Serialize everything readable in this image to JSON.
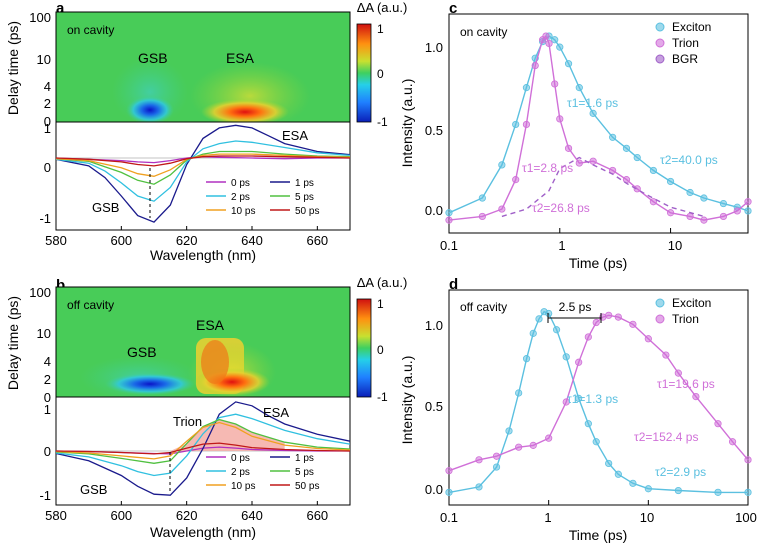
{
  "panels": {
    "a": {
      "letter": "a",
      "map_label": "on cavity",
      "map_ylabel": "Delay time (ps)",
      "map_yticks": [
        "100",
        "10",
        "4",
        "2",
        "0"
      ],
      "map_annotations": [
        "GSB",
        "ESA"
      ],
      "colorbar_title": "ΔA (a.u.)",
      "colorbar_ticks": [
        "1",
        "0",
        "-1"
      ],
      "spec_yticks": [
        "1",
        "0",
        "-1"
      ],
      "spec_annotations": [
        "GSB",
        "ESA"
      ],
      "xlabel": "Wavelength (nm)",
      "xticks": [
        "580",
        "600",
        "620",
        "640",
        "660"
      ],
      "legend": [
        "0 ps",
        "1 ps",
        "2 ps",
        "5 ps",
        "10 ps",
        "50 ps"
      ]
    },
    "b": {
      "letter": "b",
      "map_label": "off cavity",
      "map_ylabel": "Delay time (ps)",
      "map_yticks": [
        "100",
        "10",
        "4",
        "2",
        "0"
      ],
      "map_annotations": [
        "GSB",
        "ESA"
      ],
      "colorbar_title": "ΔA (a.u.)",
      "colorbar_ticks": [
        "1",
        "0",
        "-1"
      ],
      "spec_yticks": [
        "1",
        "0",
        "-1"
      ],
      "spec_annotations": [
        "Trion",
        "ESA",
        "GSB"
      ],
      "xlabel": "Wavelength (nm)",
      "xticks": [
        "580",
        "600",
        "620",
        "640",
        "660"
      ],
      "legend": [
        "0 ps",
        "1 ps",
        "2 ps",
        "5 ps",
        "10 ps",
        "50 ps"
      ]
    },
    "c": {
      "letter": "c",
      "label": "on cavity",
      "ylabel": "Intensity (a.u.)",
      "xlabel": "Time (ps)",
      "yticks": [
        "1.0",
        "0.5",
        "0.0"
      ],
      "xticks": [
        "0.1",
        "1",
        "10"
      ],
      "legend": [
        "Exciton",
        "Trion",
        "BGR"
      ],
      "annotations": [
        "τ1=1.6 ps",
        "τ2=40.0 ps",
        "τ1=2.8 ps",
        "τ2=26.8 ps"
      ]
    },
    "d": {
      "letter": "d",
      "label": "off cavity",
      "ylabel": "Intensity (a.u.)",
      "xlabel": "Time (ps)",
      "yticks": [
        "1.0",
        "0.5",
        "0.0"
      ],
      "xticks": [
        "0.1",
        "1",
        "10",
        "100"
      ],
      "legend": [
        "Exciton",
        "Trion"
      ],
      "annotations": [
        "2.5 ps",
        "τ1=1.3 ps",
        "τ1=19.6 ps",
        "τ2=152.4 ps",
        "τ2=2.9 ps"
      ]
    }
  },
  "colors": {
    "exciton": "#5bc0e0",
    "trion": "#d070d8",
    "bgr": "#a060c8",
    "ps0": "#b030c0",
    "ps1": "#1a1a8c",
    "ps2": "#30c0e0",
    "ps5": "#50c040",
    "ps10": "#f0a020",
    "ps50": "#c01818",
    "trion_fill": "#f4a8a0"
  },
  "chart_data": [
    {
      "id": "a-spectra",
      "type": "line",
      "title": "",
      "xlabel": "Wavelength (nm)",
      "xlim": [
        580,
        670
      ],
      "ylim": [
        -1.1,
        0.55
      ],
      "series": [
        {
          "name": "0 ps",
          "x": [
            580,
            590,
            600,
            605,
            610,
            615,
            620,
            625,
            630,
            640,
            650,
            660,
            670
          ],
          "values": [
            0,
            -0.02,
            -0.04,
            -0.06,
            -0.07,
            -0.04,
            0,
            0.02,
            0.01,
            0,
            -0.01,
            0,
            0
          ]
        },
        {
          "name": "1 ps",
          "x": [
            580,
            590,
            595,
            600,
            605,
            610,
            615,
            620,
            625,
            630,
            635,
            640,
            645,
            650,
            660,
            670
          ],
          "values": [
            -0.02,
            -0.12,
            -0.3,
            -0.58,
            -0.88,
            -0.98,
            -0.72,
            -0.1,
            0.3,
            0.46,
            0.5,
            0.46,
            0.34,
            0.22,
            0.1,
            0.05
          ]
        },
        {
          "name": "2 ps",
          "x": [
            580,
            590,
            595,
            600,
            605,
            610,
            615,
            620,
            625,
            630,
            635,
            640,
            650,
            660,
            670
          ],
          "values": [
            -0.02,
            -0.08,
            -0.2,
            -0.38,
            -0.58,
            -0.66,
            -0.45,
            -0.06,
            0.14,
            0.22,
            0.26,
            0.24,
            0.16,
            0.08,
            0.04
          ]
        },
        {
          "name": "5 ps",
          "x": [
            580,
            590,
            600,
            605,
            610,
            615,
            620,
            625,
            630,
            640,
            650,
            660,
            670
          ],
          "values": [
            -0.01,
            -0.05,
            -0.22,
            -0.34,
            -0.4,
            -0.26,
            -0.03,
            0.06,
            0.1,
            0.1,
            0.06,
            0.03,
            0.02
          ]
        },
        {
          "name": "10 ps",
          "x": [
            580,
            590,
            600,
            605,
            610,
            615,
            620,
            625,
            630,
            640,
            650,
            660,
            670
          ],
          "values": [
            -0.01,
            -0.04,
            -0.15,
            -0.24,
            -0.28,
            -0.18,
            -0.02,
            0.04,
            0.06,
            0.06,
            0.04,
            0.02,
            0.01
          ]
        },
        {
          "name": "50 ps",
          "x": [
            580,
            590,
            600,
            605,
            610,
            615,
            620,
            625,
            630,
            640,
            650,
            660,
            670
          ],
          "values": [
            0,
            -0.02,
            -0.06,
            -0.1,
            -0.12,
            -0.08,
            -0.01,
            0.02,
            0.03,
            0.03,
            0.02,
            0.01,
            0
          ]
        }
      ]
    },
    {
      "id": "b-spectra",
      "type": "line",
      "title": "",
      "xlabel": "Wavelength (nm)",
      "xlim": [
        580,
        670
      ],
      "ylim": [
        -1.1,
        1.1
      ],
      "series": [
        {
          "name": "0 ps",
          "x": [
            580,
            590,
            600,
            610,
            615,
            620,
            625,
            630,
            635,
            640,
            650,
            660,
            670
          ],
          "values": [
            0,
            -0.01,
            -0.03,
            -0.05,
            -0.06,
            0,
            0.06,
            0.08,
            0.06,
            0.03,
            0.01,
            0,
            0
          ]
        },
        {
          "name": "1 ps",
          "x": [
            580,
            590,
            600,
            605,
            610,
            615,
            620,
            625,
            630,
            635,
            640,
            645,
            650,
            660,
            670
          ],
          "values": [
            -0.05,
            -0.2,
            -0.5,
            -0.72,
            -0.88,
            -0.9,
            -0.55,
            0.05,
            0.75,
            1.0,
            0.92,
            0.72,
            0.55,
            0.34,
            0.2
          ]
        },
        {
          "name": "2 ps",
          "x": [
            580,
            590,
            600,
            605,
            610,
            615,
            620,
            625,
            630,
            635,
            640,
            650,
            660,
            670
          ],
          "values": [
            -0.04,
            -0.12,
            -0.3,
            -0.42,
            -0.5,
            -0.45,
            -0.1,
            0.35,
            0.68,
            0.75,
            0.66,
            0.42,
            0.25,
            0.14
          ]
        },
        {
          "name": "5 ps",
          "x": [
            580,
            590,
            600,
            610,
            615,
            620,
            625,
            630,
            635,
            640,
            650,
            660,
            670
          ],
          "values": [
            -0.02,
            -0.06,
            -0.15,
            -0.25,
            -0.2,
            0.15,
            0.5,
            0.64,
            0.55,
            0.38,
            0.18,
            0.08,
            0.04
          ]
        },
        {
          "name": "10 ps",
          "x": [
            580,
            590,
            600,
            610,
            615,
            620,
            625,
            630,
            635,
            640,
            650,
            660,
            670
          ],
          "values": [
            -0.01,
            -0.04,
            -0.1,
            -0.16,
            -0.1,
            0.2,
            0.48,
            0.58,
            0.48,
            0.3,
            0.12,
            0.05,
            0.02
          ]
        },
        {
          "name": "50 ps",
          "x": [
            580,
            590,
            600,
            610,
            615,
            620,
            625,
            630,
            635,
            640,
            650,
            660,
            670
          ],
          "values": [
            0,
            -0.01,
            -0.03,
            -0.06,
            -0.03,
            0.06,
            0.14,
            0.16,
            0.12,
            0.07,
            0.03,
            0.01,
            0
          ]
        }
      ]
    },
    {
      "id": "c-kinetics",
      "type": "scatter",
      "title": "",
      "xlabel": "Time (ps)",
      "ylabel": "Intensity (a.u.)",
      "x_scale": "log",
      "xlim": [
        0.1,
        50
      ],
      "ylim": [
        -0.07,
        1.12
      ],
      "series": [
        {
          "name": "Exciton",
          "x": [
            0.1,
            0.2,
            0.3,
            0.4,
            0.5,
            0.6,
            0.7,
            0.8,
            0.9,
            1.0,
            1.2,
            1.5,
            2,
            3,
            4,
            5,
            7,
            10,
            15,
            20,
            30,
            40,
            50
          ],
          "values": [
            0.04,
            0.12,
            0.3,
            0.52,
            0.72,
            0.88,
            0.97,
            1.0,
            0.98,
            0.94,
            0.85,
            0.72,
            0.58,
            0.45,
            0.39,
            0.34,
            0.27,
            0.21,
            0.15,
            0.12,
            0.09,
            0.07,
            0.05
          ]
        },
        {
          "name": "Trion",
          "x": [
            0.1,
            0.2,
            0.3,
            0.4,
            0.5,
            0.6,
            0.7,
            0.75,
            0.8,
            0.9,
            1.0,
            1.2,
            1.5,
            2,
            3,
            4,
            5,
            7,
            10,
            15,
            20,
            30,
            40,
            50
          ],
          "values": [
            0.0,
            0.02,
            0.06,
            0.22,
            0.52,
            0.84,
            0.98,
            1.0,
            0.96,
            0.74,
            0.55,
            0.39,
            0.31,
            0.32,
            0.27,
            0.22,
            0.17,
            0.1,
            0.04,
            0.02,
            0.0,
            0.02,
            0.05,
            0.1
          ]
        },
        {
          "name": "BGR",
          "x": [
            0.3,
            0.5,
            0.8,
            1.0,
            1.5,
            2,
            3,
            4,
            6,
            10,
            20
          ],
          "values": [
            0.02,
            0.06,
            0.16,
            0.28,
            0.34,
            0.3,
            0.25,
            0.2,
            0.14,
            0.07,
            0.02
          ]
        }
      ]
    },
    {
      "id": "d-kinetics",
      "type": "scatter",
      "title": "",
      "xlabel": "Time (ps)",
      "ylabel": "Intensity (a.u.)",
      "x_scale": "log",
      "xlim": [
        0.1,
        100
      ],
      "ylim": [
        -0.07,
        1.12
      ],
      "series": [
        {
          "name": "Exciton",
          "x": [
            0.1,
            0.2,
            0.3,
            0.4,
            0.5,
            0.6,
            0.7,
            0.8,
            0.9,
            1.0,
            1.2,
            1.5,
            2,
            2.5,
            3,
            4,
            5,
            7,
            10,
            20,
            50,
            100
          ],
          "values": [
            0.0,
            0.03,
            0.14,
            0.34,
            0.55,
            0.74,
            0.88,
            0.96,
            1.0,
            0.99,
            0.9,
            0.75,
            0.52,
            0.38,
            0.28,
            0.16,
            0.1,
            0.05,
            0.02,
            0.01,
            0.0,
            0.0
          ]
        },
        {
          "name": "Trion",
          "x": [
            0.1,
            0.2,
            0.3,
            0.5,
            0.7,
            1.0,
            1.5,
            2,
            2.5,
            3,
            3.5,
            4,
            5,
            7,
            10,
            15,
            20,
            30,
            50,
            70,
            100
          ],
          "values": [
            0.12,
            0.18,
            0.2,
            0.25,
            0.26,
            0.3,
            0.5,
            0.72,
            0.86,
            0.94,
            0.97,
            0.98,
            0.97,
            0.93,
            0.85,
            0.76,
            0.66,
            0.53,
            0.38,
            0.28,
            0.18
          ]
        }
      ]
    }
  ]
}
